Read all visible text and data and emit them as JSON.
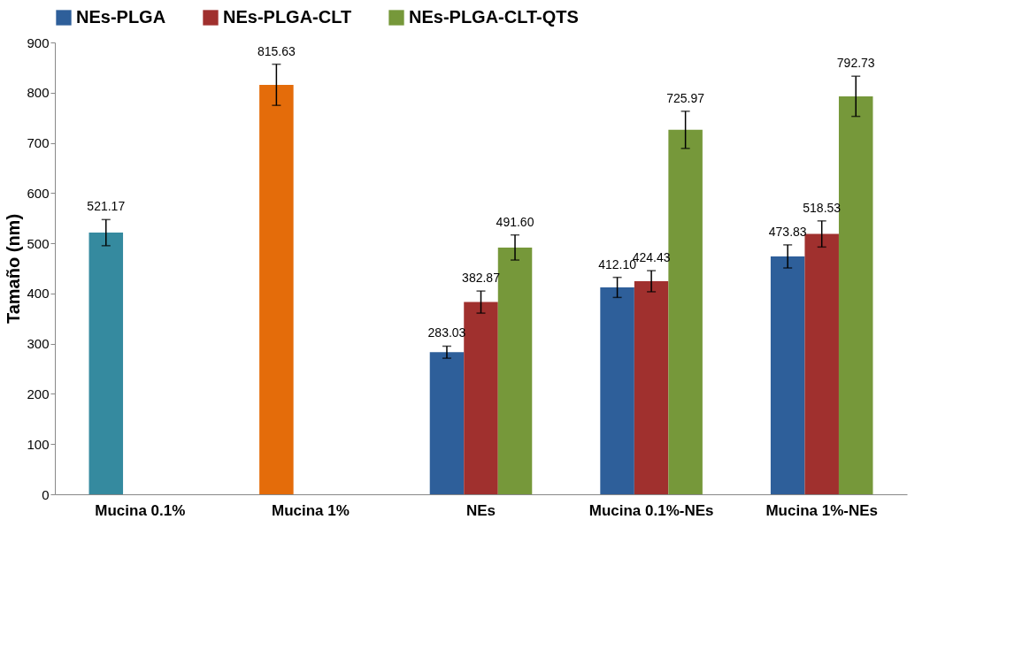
{
  "chart_data": {
    "type": "bar",
    "ylabel": "Tamaño (nm)",
    "categories": [
      "Mucina 0.1%",
      "Mucina 1%",
      "NEs",
      "Mucina 0.1%-NEs",
      "Mucina 1%-NEs"
    ],
    "series": [
      {
        "name": "NEs-PLGA",
        "color": "#2e5f9a",
        "colors": [
          "#358a9f",
          "#e46c0a",
          "#2e5f9a",
          "#2e5f9a",
          "#2e5f9a"
        ],
        "values": [
          521.17,
          815.63,
          283.03,
          412.1,
          473.83
        ],
        "errors": [
          26,
          41,
          12,
          20,
          23
        ],
        "value_labels": [
          "521.17",
          "815.63",
          "283.03",
          "412.10",
          "473.83"
        ]
      },
      {
        "name": "NEs-PLGA-CLT",
        "color": "#a0302e",
        "values": [
          null,
          null,
          382.87,
          424.43,
          518.53
        ],
        "errors": [
          null,
          null,
          22,
          21,
          26
        ],
        "value_labels": [
          null,
          null,
          "382.87",
          "424.43",
          "518.53"
        ]
      },
      {
        "name": "NEs-PLGA-CLT-QTS",
        "color": "#76983a",
        "values": [
          null,
          null,
          491.6,
          725.97,
          792.73
        ],
        "errors": [
          null,
          null,
          25,
          37,
          40
        ],
        "value_labels": [
          null,
          null,
          "491.60",
          "725.97",
          "792.73"
        ]
      }
    ],
    "ylim": [
      0,
      900
    ],
    "yticks": [
      0,
      100,
      200,
      300,
      400,
      500,
      600,
      700,
      800,
      900
    ],
    "grid": false,
    "legend": "top"
  }
}
